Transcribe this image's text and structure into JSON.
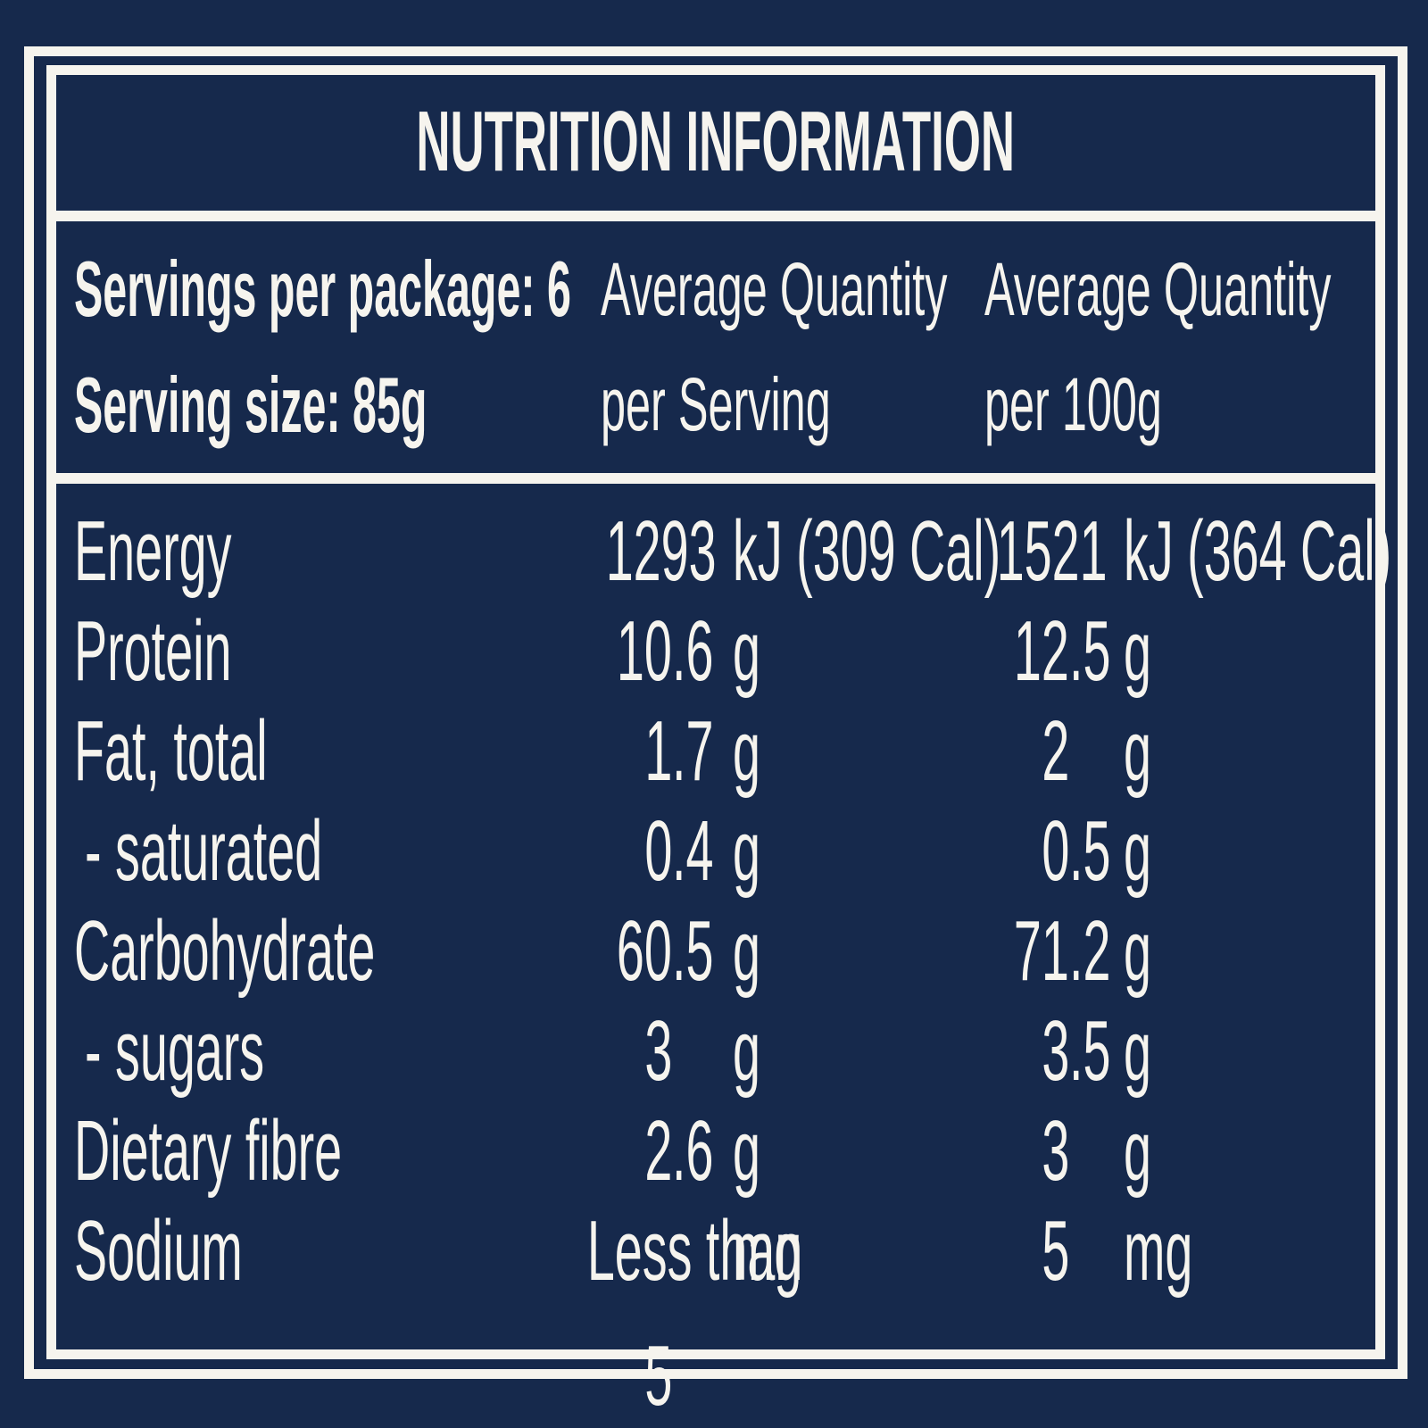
{
  "colors": {
    "background": "#16294c",
    "ink": "#f6f4ee"
  },
  "title": "NUTRITION INFORMATION",
  "header": {
    "servings_line": "Servings per package: 6",
    "serving_size_line": "Serving size: 85g",
    "col_serving": {
      "line1": "Average Quantity",
      "line2": "per Serving"
    },
    "col_100g": {
      "line1": "Average Quantity",
      "line2": "per 100g"
    }
  },
  "rows": [
    {
      "label": "Energy",
      "serve": {
        "value": "1293",
        "int": "1293",
        "dec": "",
        "unit": "kJ (309 Cal)"
      },
      "per100": {
        "value": "1521",
        "int": "1521",
        "dec": "",
        "unit": "kJ (364 Cal)"
      }
    },
    {
      "label": "Protein",
      "serve": {
        "value": "10.6",
        "int": "10",
        "dec": ".6",
        "unit": "g"
      },
      "per100": {
        "value": "12.5",
        "int": "12",
        "dec": ".5",
        "unit": "g"
      }
    },
    {
      "label": "Fat, total",
      "serve": {
        "value": "1.7",
        "int": "1",
        "dec": ".7",
        "unit": "g"
      },
      "per100": {
        "value": "2",
        "int": "2",
        "dec": "",
        "unit": "g"
      }
    },
    {
      "label": "- saturated",
      "serve": {
        "value": "0.4",
        "int": "0",
        "dec": ".4",
        "unit": "g"
      },
      "per100": {
        "value": "0.5",
        "int": "0",
        "dec": ".5",
        "unit": "g"
      }
    },
    {
      "label": "Carbohydrate",
      "serve": {
        "value": "60.5",
        "int": "60",
        "dec": ".5",
        "unit": "g"
      },
      "per100": {
        "value": "71.2",
        "int": "71",
        "dec": ".2",
        "unit": "g"
      }
    },
    {
      "label": "- sugars",
      "serve": {
        "value": "3",
        "int": "3",
        "dec": "",
        "unit": "g"
      },
      "per100": {
        "value": "3.5",
        "int": "3",
        "dec": ".5",
        "unit": "g"
      }
    },
    {
      "label": "Dietary fibre",
      "serve": {
        "value": "2.6",
        "int": "2",
        "dec": ".6",
        "unit": "g"
      },
      "per100": {
        "value": "3",
        "int": "3",
        "dec": "",
        "unit": "g"
      }
    },
    {
      "label": "Sodium",
      "serve": {
        "prefix": "Less than",
        "value": "5",
        "int": "5",
        "dec": "",
        "unit": "mg"
      },
      "per100": {
        "value": "5",
        "int": "5",
        "dec": "",
        "unit": "mg"
      }
    }
  ]
}
